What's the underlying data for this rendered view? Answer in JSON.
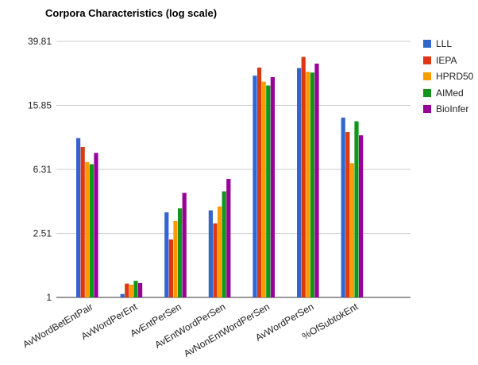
{
  "chart_data": {
    "type": "bar",
    "title": "Corpora Characteristics (log scale)",
    "xlabel": "",
    "ylabel": "",
    "scale": "log",
    "grid": true,
    "legend_position": "right",
    "ylim": [
      1,
      39.81
    ],
    "yticks": [
      "39.81",
      "15.85",
      "6.31",
      "2.51",
      "1"
    ],
    "ytick_values": [
      39.81,
      15.85,
      6.31,
      2.51,
      1
    ],
    "categories": [
      "AvWordBetEntPair",
      "AvWordPerEnt",
      "AvEntPerSen",
      "AvEntWordPerSen",
      "AvNonEntWordPerSen",
      "AvWordPerSen",
      "%OfSubtokEnt"
    ],
    "series": [
      {
        "name": "LLL",
        "color": "#3366cc",
        "values": [
          9.9,
          1.05,
          3.4,
          3.5,
          24.3,
          27.1,
          13.3
        ]
      },
      {
        "name": "IEPA",
        "color": "#dc3912",
        "values": [
          8.7,
          1.22,
          2.3,
          2.9,
          27.3,
          31.8,
          10.8
        ]
      },
      {
        "name": "HPRD50",
        "color": "#ff9900",
        "values": [
          7.0,
          1.2,
          3.0,
          3.7,
          22.3,
          25.7,
          6.9
        ]
      },
      {
        "name": "AIMed",
        "color": "#109618",
        "values": [
          6.8,
          1.27,
          3.6,
          4.6,
          21.1,
          25.4,
          12.6
        ]
      },
      {
        "name": "BioInfer",
        "color": "#990099",
        "values": [
          8.0,
          1.23,
          4.5,
          5.5,
          23.8,
          28.9,
          10.3
        ]
      }
    ]
  }
}
